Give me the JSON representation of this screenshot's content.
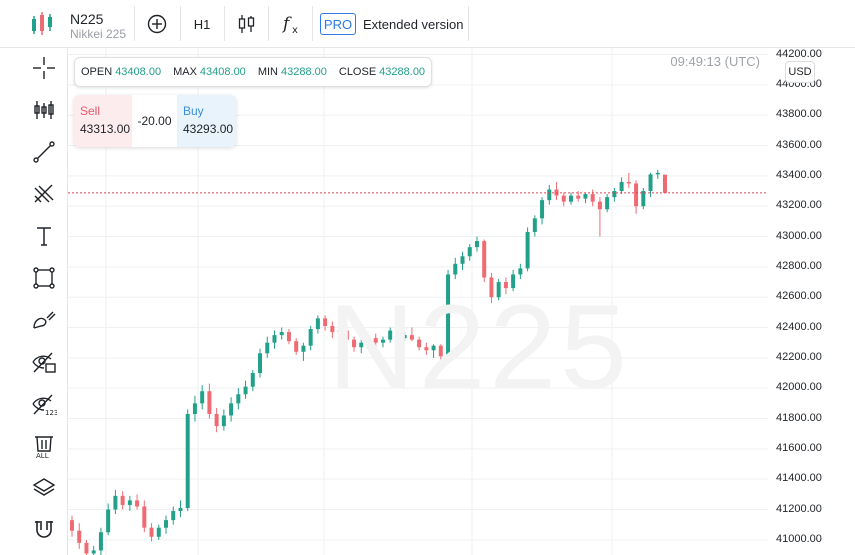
{
  "header": {
    "symbol": "N225",
    "description": "Nikkei 225",
    "timeframe": "H1",
    "pro_badge": "PRO",
    "extended_label": "Extended version"
  },
  "chart_meta": {
    "time": "09:49:13 (UTC)",
    "watermark": "N225",
    "currency": "USD"
  },
  "ohlc": {
    "open_label": "OPEN",
    "open": "43408.00",
    "max_label": "MAX",
    "max": "43408.00",
    "min_label": "MIN",
    "min": "43288.00",
    "close_label": "CLOSE",
    "close": "43288.00"
  },
  "trade": {
    "sell_label": "Sell",
    "sell_price": "43313.00",
    "spread": "-20.00",
    "buy_label": "Buy",
    "buy_price": "43293.00"
  },
  "toolbar_left": [
    {
      "name": "crosshair-icon"
    },
    {
      "name": "indicators-icon"
    },
    {
      "name": "trend-line-icon"
    },
    {
      "name": "fibonacci-icon"
    },
    {
      "name": "text-icon"
    },
    {
      "name": "rectangle-icon"
    },
    {
      "name": "brush-icon"
    },
    {
      "name": "hide-drawings-icon"
    },
    {
      "name": "hide-indicators-icon"
    },
    {
      "name": "delete-all-icon"
    },
    {
      "name": "layers-icon"
    },
    {
      "name": "magnet-icon"
    }
  ],
  "colors": {
    "up": "#22a08a",
    "down": "#ef6b73",
    "grid": "#eef0f2",
    "price_line": "#e04050",
    "accent": "#2d7be5"
  },
  "chart_data": {
    "type": "candlestick",
    "y_ticks": [
      "44200.00",
      "44000.00",
      "43800.00",
      "43600.00",
      "43400.00",
      "43200.00",
      "43000.00",
      "42800.00",
      "42600.00",
      "42400.00",
      "42200.00",
      "42000.00",
      "41800.00",
      "41600.00",
      "41400.00",
      "41200.00",
      "41000.00"
    ],
    "ylim": [
      40900,
      44230
    ],
    "last_price": 43288,
    "candles": [
      [
        41130,
        41160,
        41020,
        41060
      ],
      [
        41060,
        41110,
        40940,
        40980
      ],
      [
        40980,
        41000,
        40880,
        40910
      ],
      [
        40910,
        40960,
        40870,
        40930
      ],
      [
        40930,
        41080,
        40900,
        41050
      ],
      [
        41050,
        41240,
        41030,
        41200
      ],
      [
        41200,
        41330,
        41170,
        41290
      ],
      [
        41290,
        41320,
        41200,
        41230
      ],
      [
        41230,
        41290,
        41190,
        41260
      ],
      [
        41260,
        41300,
        41200,
        41220
      ],
      [
        41220,
        41260,
        41050,
        41080
      ],
      [
        41080,
        41110,
        40990,
        41020
      ],
      [
        41020,
        41100,
        41000,
        41080
      ],
      [
        41080,
        41160,
        41040,
        41130
      ],
      [
        41130,
        41220,
        41100,
        41190
      ],
      [
        41190,
        41260,
        41150,
        41210
      ],
      [
        41210,
        41860,
        41190,
        41830
      ],
      [
        41830,
        41950,
        41780,
        41900
      ],
      [
        41900,
        42020,
        41860,
        41980
      ],
      [
        41980,
        42030,
        41800,
        41830
      ],
      [
        41830,
        41870,
        41710,
        41750
      ],
      [
        41750,
        41860,
        41720,
        41820
      ],
      [
        41820,
        41940,
        41780,
        41900
      ],
      [
        41900,
        42000,
        41860,
        41960
      ],
      [
        41960,
        42050,
        41930,
        42010
      ],
      [
        42010,
        42120,
        41980,
        42100
      ],
      [
        42100,
        42260,
        42070,
        42230
      ],
      [
        42230,
        42340,
        42200,
        42300
      ],
      [
        42300,
        42380,
        42260,
        42350
      ],
      [
        42350,
        42400,
        42320,
        42370
      ],
      [
        42370,
        42390,
        42290,
        42310
      ],
      [
        42310,
        42330,
        42220,
        42240
      ],
      [
        42240,
        42300,
        42180,
        42280
      ],
      [
        42280,
        42410,
        42250,
        42390
      ],
      [
        42390,
        42480,
        42360,
        42460
      ],
      [
        42460,
        42480,
        42380,
        42410
      ],
      [
        42410,
        42440,
        42330,
        42370
      ],
      [
        42370,
        42410,
        42340,
        42380
      ],
      [
        42380,
        42400,
        42300,
        42320
      ],
      [
        42320,
        42340,
        42240,
        42270
      ],
      [
        42270,
        42320,
        42230,
        42300
      ],
      [
        42300,
        42350,
        42270,
        42330
      ],
      [
        42330,
        42360,
        42280,
        42300
      ],
      [
        42300,
        42340,
        42270,
        42320
      ],
      [
        42320,
        42400,
        42300,
        42380
      ],
      [
        42380,
        42390,
        42300,
        42330
      ],
      [
        42330,
        42370,
        42310,
        42350
      ],
      [
        42350,
        42400,
        42310,
        42320
      ],
      [
        42320,
        42340,
        42250,
        42270
      ],
      [
        42270,
        42300,
        42220,
        42250
      ],
      [
        42250,
        42290,
        42200,
        42280
      ],
      [
        42280,
        42290,
        42180,
        42210
      ],
      [
        42210,
        42780,
        42200,
        42750
      ],
      [
        42750,
        42860,
        42720,
        42820
      ],
      [
        42820,
        42900,
        42780,
        42870
      ],
      [
        42870,
        42950,
        42840,
        42930
      ],
      [
        42930,
        43000,
        42900,
        42970
      ],
      [
        42970,
        42980,
        42700,
        42730
      ],
      [
        42730,
        42760,
        42560,
        42600
      ],
      [
        42600,
        42720,
        42580,
        42700
      ],
      [
        42700,
        42730,
        42620,
        42660
      ],
      [
        42660,
        42780,
        42640,
        42750
      ],
      [
        42750,
        42820,
        42720,
        42790
      ],
      [
        42790,
        43060,
        42770,
        43030
      ],
      [
        43030,
        43140,
        43000,
        43120
      ],
      [
        43120,
        43260,
        43080,
        43240
      ],
      [
        43240,
        43340,
        43210,
        43310
      ],
      [
        43310,
        43360,
        43240,
        43270
      ],
      [
        43270,
        43290,
        43200,
        43230
      ],
      [
        43230,
        43290,
        43210,
        43270
      ],
      [
        43270,
        43300,
        43230,
        43250
      ],
      [
        43250,
        43290,
        43220,
        43280
      ],
      [
        43280,
        43310,
        43200,
        43230
      ],
      [
        43230,
        43260,
        43000,
        43180
      ],
      [
        43180,
        43280,
        43160,
        43260
      ],
      [
        43260,
        43320,
        43230,
        43300
      ],
      [
        43300,
        43390,
        43280,
        43360
      ],
      [
        43360,
        43420,
        43320,
        43350
      ],
      [
        43350,
        43370,
        43150,
        43200
      ],
      [
        43200,
        43320,
        43180,
        43300
      ],
      [
        43300,
        43420,
        43260,
        43410
      ],
      [
        43410,
        43440,
        43380,
        43420
      ],
      [
        43408,
        43408,
        43288,
        43288
      ]
    ]
  }
}
